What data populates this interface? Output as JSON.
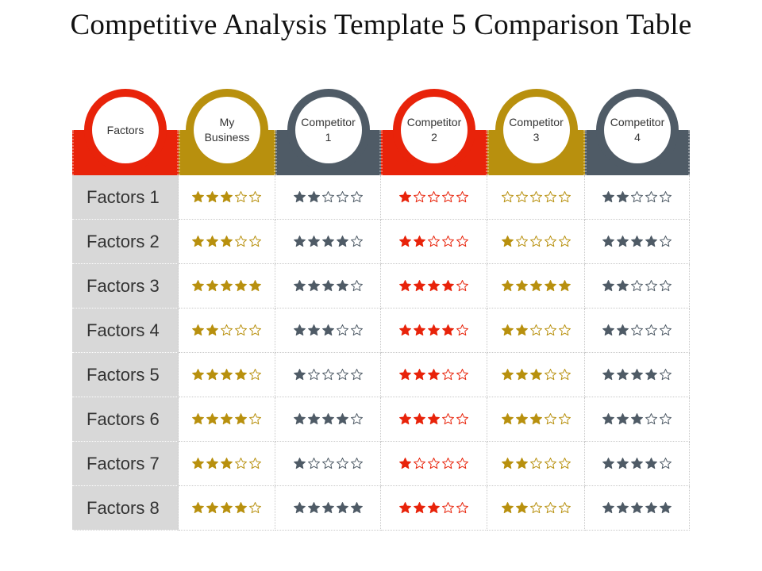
{
  "title": "Competitive Analysis Template 5 Comparison Table",
  "colors": {
    "red": "#e8230a",
    "gold": "#b8900e",
    "slate": "#4f5b66",
    "label_bg": "#d8d8d8"
  },
  "columns": [
    {
      "label": "Factors",
      "color": "red"
    },
    {
      "label": "My\nBusiness",
      "color": "gold"
    },
    {
      "label": "Competitor\n1",
      "color": "slate"
    },
    {
      "label": "Competitor\n2",
      "color": "red"
    },
    {
      "label": "Competitor\n3",
      "color": "gold"
    },
    {
      "label": "Competitor\n4",
      "color": "slate"
    }
  ],
  "rows": [
    {
      "label": "Factors 1",
      "ratings": [
        3,
        2,
        1,
        0,
        2
      ]
    },
    {
      "label": "Factors 2",
      "ratings": [
        3,
        4,
        2,
        1,
        4
      ]
    },
    {
      "label": "Factors 3",
      "ratings": [
        5,
        4,
        4,
        5,
        2
      ]
    },
    {
      "label": "Factors 4",
      "ratings": [
        2,
        3,
        4,
        2,
        2
      ]
    },
    {
      "label": "Factors 5",
      "ratings": [
        4,
        1,
        3,
        3,
        4
      ]
    },
    {
      "label": "Factors 6",
      "ratings": [
        4,
        4,
        3,
        3,
        3
      ]
    },
    {
      "label": "Factors 7",
      "ratings": [
        3,
        1,
        1,
        2,
        4
      ]
    },
    {
      "label": "Factors 8",
      "ratings": [
        4,
        5,
        3,
        2,
        5
      ]
    }
  ],
  "max_stars": 5
}
